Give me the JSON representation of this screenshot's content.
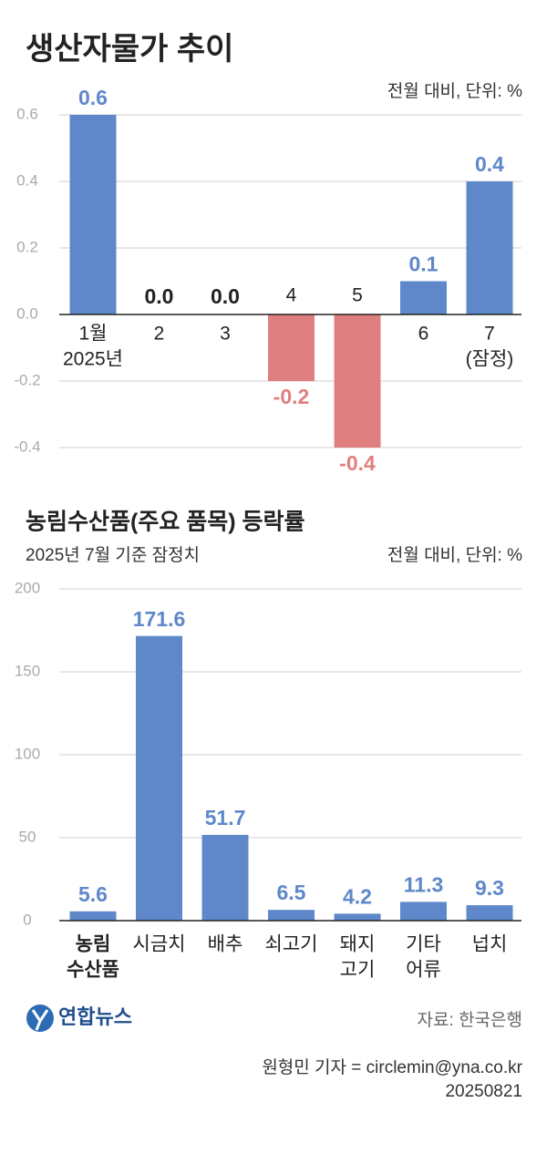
{
  "chart_data": [
    {
      "type": "bar",
      "title": "생산자물가 추이",
      "unit": "전월 대비, 단위: %",
      "categories": [
        [
          "1월",
          "2025년"
        ],
        [
          "2"
        ],
        [
          "3"
        ],
        [
          "4"
        ],
        [
          "5"
        ],
        [
          "6"
        ],
        [
          "7",
          "(잠정)"
        ]
      ],
      "values": [
        0.6,
        0.0,
        0.0,
        -0.2,
        -0.4,
        0.1,
        0.4
      ],
      "value_labels": [
        "0.6",
        "0.0",
        "0.0",
        "-0.2",
        "-0.4",
        "0.1",
        "0.4"
      ],
      "color": "#5e88c9",
      "negative_color": "#e07f7f",
      "ylim": [
        -0.4,
        0.6
      ],
      "yticks": [
        -0.4,
        -0.2,
        {
          "value": 0,
          "label": "0.0"
        },
        0.2,
        0.4,
        0.6
      ],
      "grid": true
    },
    {
      "type": "bar",
      "title": "농림수산품(주요 품목) 등락률",
      "subtitle": "2025년 7월 기준 잠정치",
      "unit": "전월 대비, 단위: %",
      "categories": [
        [
          "농림",
          "수산품"
        ],
        [
          "시금치"
        ],
        [
          "배추"
        ],
        [
          "쇠고기"
        ],
        [
          "돼지",
          "고기"
        ],
        [
          "기타",
          "어류"
        ],
        [
          "넙치"
        ]
      ],
      "values": [
        5.6,
        171.6,
        51.7,
        6.5,
        4.2,
        11.3,
        9.3
      ],
      "color": "#5e88c9",
      "ylim": [
        0,
        200
      ],
      "yticks": [
        0,
        50,
        100,
        150,
        200
      ],
      "grid": true
    }
  ],
  "logo": "연합뉴스",
  "source": "자료: 한국은행",
  "byline": "원형민 기자 = circlemin@yna.co.kr",
  "date": "20250821"
}
